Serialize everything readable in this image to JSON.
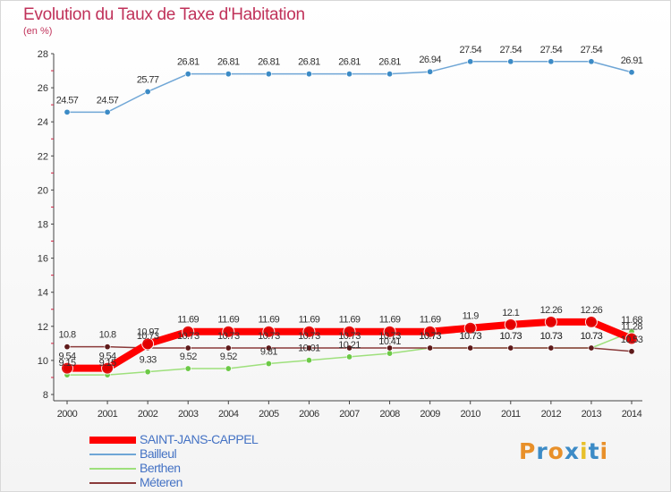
{
  "chart_data": {
    "type": "line",
    "title": "Evolution du Taux de Taxe d'Habitation",
    "subtitle": "(en %)",
    "x": [
      2000,
      2001,
      2002,
      2003,
      2004,
      2005,
      2006,
      2007,
      2008,
      2009,
      2010,
      2011,
      2012,
      2013,
      2014
    ],
    "x_tick_labels": [
      "2000",
      "2001",
      "2002",
      "2003",
      "2004",
      "2005",
      "2006",
      "2007",
      "2008",
      "2009",
      "2010",
      "2011",
      "2012",
      "2013",
      "2014"
    ],
    "ylim": [
      8,
      28
    ],
    "y_ticks": [
      8,
      10,
      12,
      14,
      16,
      18,
      20,
      22,
      24,
      26,
      28
    ],
    "y_tick_labels": [
      "8",
      "10",
      "12",
      "14",
      "16",
      "18",
      "20",
      "22",
      "24",
      "26",
      "28"
    ],
    "grid": false,
    "legend_position": "bottom-left",
    "series": [
      {
        "name": "Bailleul",
        "color": "#6fa6d6",
        "marker_color": "#3c8bc6",
        "values": [
          24.57,
          24.57,
          25.77,
          26.81,
          26.81,
          26.81,
          26.81,
          26.81,
          26.81,
          26.94,
          27.54,
          27.54,
          27.54,
          27.54,
          26.91
        ],
        "labels": [
          "24.57",
          "24.57",
          "25.77",
          "26.81",
          "26.81",
          "26.81",
          "26.81",
          "26.81",
          "26.81",
          "26.94",
          "27.54",
          "27.54",
          "27.54",
          "27.54",
          "26.91"
        ]
      },
      {
        "name": "Berthen",
        "color": "#9ee07c",
        "marker_color": "#6cc946",
        "values": [
          9.15,
          9.15,
          9.33,
          9.52,
          9.52,
          9.81,
          10.01,
          10.21,
          10.41,
          10.73,
          10.73,
          10.73,
          10.73,
          10.73,
          11.68
        ],
        "labels": [
          "9.15",
          "9.15",
          "9.33",
          "9.52",
          "9.52",
          "9.81",
          "10.01",
          "10.21",
          "10.41",
          "10.73",
          "10.73",
          "10.73",
          "10.73",
          "10.73",
          "11.68"
        ]
      },
      {
        "name": "Méteren",
        "color": "#8a3a3a",
        "marker_color": "#5e1a1a",
        "values": [
          10.8,
          10.8,
          10.73,
          10.73,
          10.73,
          10.73,
          10.73,
          10.73,
          10.73,
          10.73,
          10.73,
          10.73,
          10.73,
          10.73,
          10.53
        ],
        "labels": [
          "10.8",
          "10.8",
          "10.73",
          "10.73",
          "10.73",
          "10.73",
          "10.73",
          "10.73",
          "10.73",
          "10.73",
          "10.73",
          "10.73",
          "10.73",
          "10.73",
          "10.53"
        ]
      },
      {
        "name": "SAINT-JANS-CAPPEL",
        "color": "#ff0000",
        "marker_color": "#e00000",
        "values": [
          9.54,
          9.54,
          10.97,
          11.69,
          11.69,
          11.69,
          11.69,
          11.69,
          11.69,
          11.69,
          11.9,
          12.1,
          12.26,
          12.26,
          11.28
        ],
        "labels": [
          "9.54",
          "9.54",
          "10.97",
          "11.69",
          "11.69",
          "11.69",
          "11.69",
          "11.69",
          "11.69",
          "11.69",
          "11.9",
          "12.1",
          "12.26",
          "12.26",
          "11.28"
        ]
      }
    ],
    "legend_entries": [
      {
        "name": "SAINT-JANS-CAPPEL",
        "color": "#ff0000",
        "thickness": 8
      },
      {
        "name": "Bailleul",
        "color": "#6fa6d6",
        "thickness": 2
      },
      {
        "name": "Berthen",
        "color": "#9ee07c",
        "thickness": 2
      },
      {
        "name": "Méteren",
        "color": "#8a3a3a",
        "thickness": 2
      }
    ]
  },
  "branding": {
    "logo_text": "Proxiti",
    "logo_colors": [
      "#e8902a",
      "#3c8bc6",
      "#e8902a",
      "#3c8bc6",
      "#e8c02a",
      "#3c8bc6",
      "#e8902a"
    ]
  }
}
